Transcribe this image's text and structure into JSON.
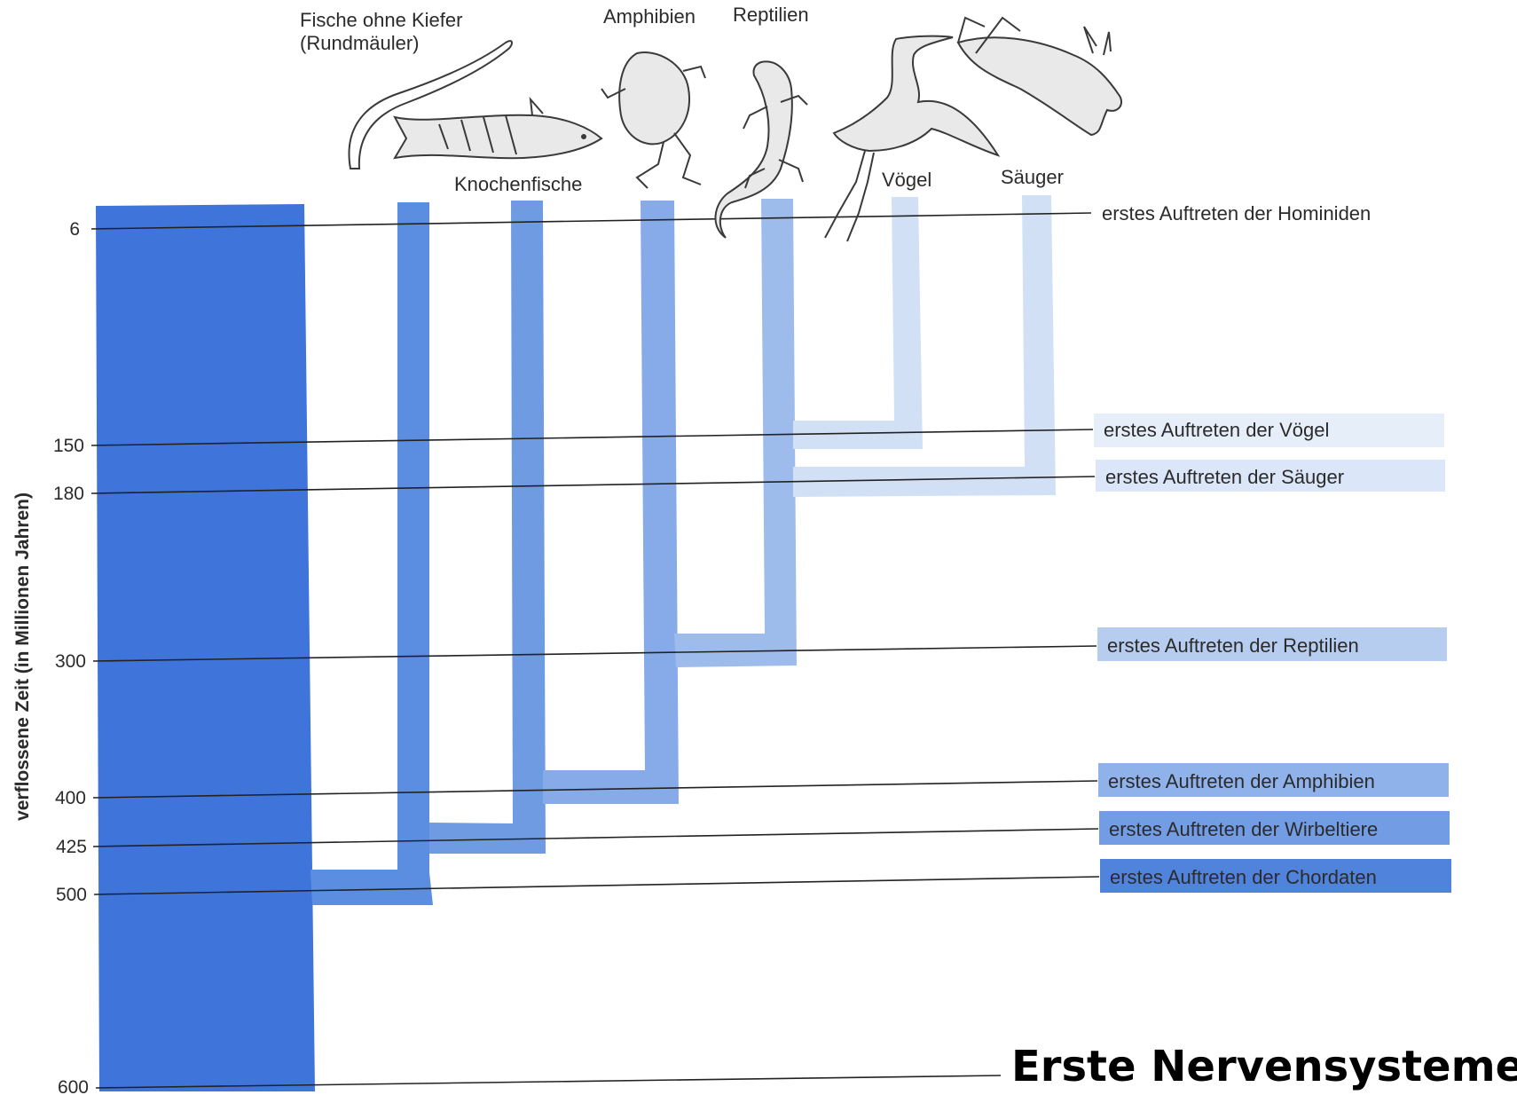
{
  "yaxis": {
    "label": "verflossene Zeit (in Millionen Jahren)",
    "ticks": [
      "6",
      "150",
      "180",
      "300",
      "400",
      "425",
      "500",
      "600"
    ]
  },
  "groups": [
    {
      "id": "rundmaeuler",
      "label_lines": [
        "Fische ohne Kiefer",
        "(Rundmäuler)"
      ],
      "color": "#5b8de0"
    },
    {
      "id": "knochenfische",
      "label_lines": [
        "Knochenfische"
      ],
      "color": "#6f9be3"
    },
    {
      "id": "amphibien",
      "label_lines": [
        "Amphibien"
      ],
      "color": "#86abe8"
    },
    {
      "id": "reptilien",
      "label_lines": [
        "Reptilien"
      ],
      "color": "#9dbcec"
    },
    {
      "id": "voegel",
      "label_lines": [
        "Vögel"
      ],
      "color": "#d2e0f6"
    },
    {
      "id": "saeuger",
      "label_lines": [
        "Säuger"
      ],
      "color": "#d2e0f6"
    }
  ],
  "events": [
    {
      "time": "6",
      "text": "erstes Auftreten der Hominiden",
      "box_color": null
    },
    {
      "time": "150",
      "text": "erstes Auftreten der Vögel",
      "box_color": "#e6eefa"
    },
    {
      "time": "180",
      "text": "erstes Auftreten der Säuger",
      "box_color": "#dbe6f8"
    },
    {
      "time": "300",
      "text": "erstes Auftreten der Reptilien",
      "box_color": "#b6cdf0"
    },
    {
      "time": "400",
      "text": "erstes Auftreten der Amphibien",
      "box_color": "#8fb2ea"
    },
    {
      "time": "425",
      "text": "erstes Auftreten der Wirbeltiere",
      "box_color": "#729de4"
    },
    {
      "time": "500",
      "text": "erstes Auftreten der Chordaten",
      "box_color": "#4f83dc"
    }
  ],
  "colors": {
    "main_trunk": "#3f74da",
    "line": "#222222"
  },
  "bottom_title": "Erste Nervensysteme"
}
